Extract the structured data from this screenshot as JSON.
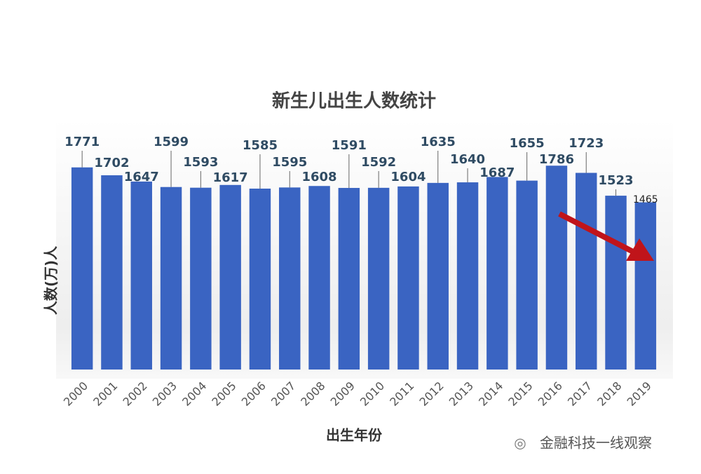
{
  "chart_data": {
    "type": "bar",
    "title": "新生儿出生人数统计",
    "y_label": "人数(万)人",
    "x_label": "出生年份",
    "watermark": "金融科技一线观察",
    "categories": [
      "2000",
      "2001",
      "2002",
      "2003",
      "2004",
      "2005",
      "2006",
      "2007",
      "2008",
      "2009",
      "2010",
      "2011",
      "2012",
      "2013",
      "2014",
      "2015",
      "2016",
      "2017",
      "2018",
      "2019"
    ],
    "values": [
      1771,
      1702,
      1647,
      1599,
      1593,
      1617,
      1585,
      1595,
      1608,
      1591,
      1592,
      1604,
      1635,
      1640,
      1687,
      1655,
      1786,
      1723,
      1523,
      1465
    ],
    "color": "#3a64c2",
    "ylim": [
      0,
      1800
    ]
  }
}
